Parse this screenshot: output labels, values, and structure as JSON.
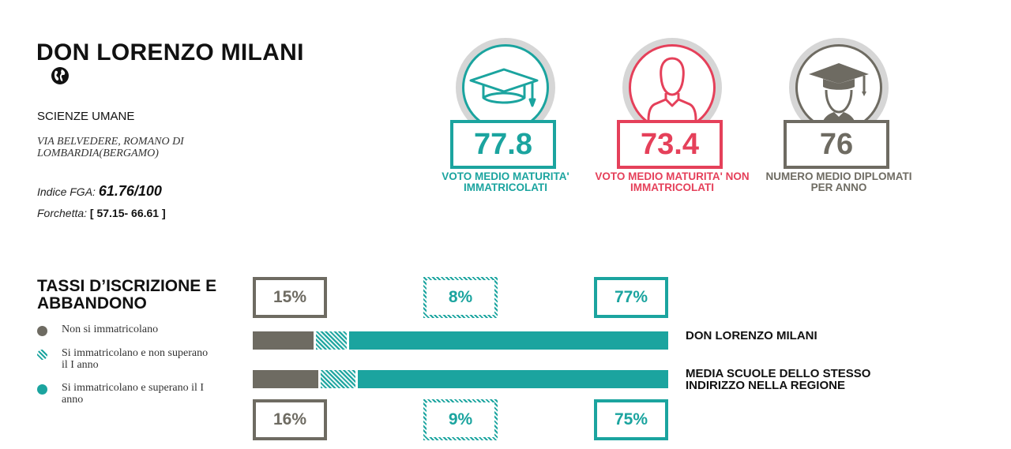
{
  "school": {
    "name": "DON LORENZO MILANI",
    "type": "SCIENZE UMANE",
    "address": "VIA BELVEDERE, ROMANO DI LOMBARDIA(BERGAMO)",
    "fga_label": "Indice FGA: ",
    "fga_value": "61.76/100",
    "forchetta_label": "Forchetta: ",
    "forchetta_value": "[ 57.15- 66.61 ]",
    "link_icon": "globe-icon"
  },
  "metrics": [
    {
      "value": "77.8",
      "label": "VOTO MEDIO MATURITA' IMMATRICOLATI",
      "color": "#1ba49f",
      "icon": "graduation-cap-icon"
    },
    {
      "value": "73.4",
      "label": "VOTO MEDIO MATURITA' NON IMMATRICOLATI",
      "color": "#e5405a",
      "icon": "person-icon"
    },
    {
      "value": "76",
      "label": "NUMERO MEDIO DIPLOMATI PER ANNO",
      "color": "#6e6b62",
      "icon": "graduate-icon"
    }
  ],
  "rates": {
    "title": "TASSI D’ISCRIZIONE E ABBANDONO",
    "legend": [
      {
        "label": "Non si immatricolano",
        "color": "#6e6b62",
        "style": "solid"
      },
      {
        "label": "Si immatricolano e non superano il I anno",
        "color": "#1ba49f",
        "style": "hatched"
      },
      {
        "label": "Si immatricolano e superano il I anno",
        "color": "#1ba49f",
        "style": "solid"
      }
    ],
    "rows": [
      {
        "label": "DON LORENZO MILANI",
        "values": [
          15,
          8,
          77
        ],
        "labels": [
          "15%",
          "8%",
          "77%"
        ]
      },
      {
        "label": "MEDIA SCUOLE DELLO STESSO INDIRIZZO NELLA REGIONE",
        "values": [
          16,
          9,
          75
        ],
        "labels": [
          "16%",
          "9%",
          "75%"
        ]
      }
    ]
  }
}
